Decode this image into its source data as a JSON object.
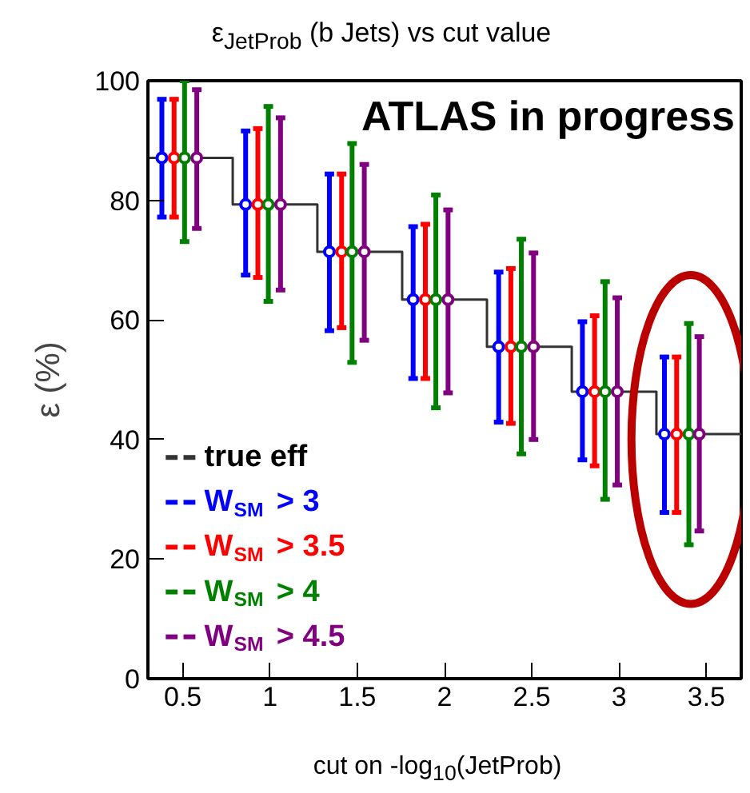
{
  "chart_data": {
    "type": "scatter",
    "title": "ε$_{JetProb}$ (b Jets) vs cut value",
    "xlabel": "cut on -log$_{10}$(JetProb)",
    "ylabel": "ε (%)",
    "xlim": [
      0.3,
      3.7
    ],
    "xticks": [
      0.5,
      1,
      1.5,
      2,
      2.5,
      3,
      3.5
    ],
    "ylim": [
      0,
      100
    ],
    "yticks": [
      0,
      20,
      40,
      60,
      80,
      100
    ],
    "grid": false,
    "legend": "left",
    "marker": "circle",
    "annotations": [
      "ATLAS in progress"
    ],
    "series": [
      {
        "name": "true eff",
        "type": "step",
        "marker": "none",
        "color": "#333333",
        "x": [
          0.3,
          0.786,
          1.271,
          1.757,
          2.243,
          2.729,
          3.214,
          3.7
        ],
        "values": [
          87.1,
          79.3,
          71.4,
          63.4,
          55.5,
          48,
          40.9,
          40.9
        ]
      },
      {
        "name": "W$_{SM}$ > 3",
        "color": "#0000ff",
        "x": [
          0.38,
          0.86,
          1.34,
          1.82,
          2.31,
          2.79,
          3.26
        ],
        "values": [
          87.1,
          79.3,
          71.4,
          63.4,
          55.5,
          48,
          40.9
        ],
        "errors": [
          [
            77.2,
            96.9
          ],
          [
            67.5,
            91.6
          ],
          [
            58.2,
            84.4
          ],
          [
            50.2,
            75.6
          ],
          [
            42.9,
            68
          ],
          [
            36.6,
            59.7
          ],
          [
            27.8,
            53.8
          ]
        ]
      },
      {
        "name": "W$_{SM}$ > 3.5",
        "color": "#ff0000",
        "x": [
          0.45,
          0.93,
          1.41,
          1.89,
          2.38,
          2.86,
          3.33
        ],
        "values": [
          87.1,
          79.3,
          71.4,
          63.4,
          55.5,
          48,
          40.9
        ],
        "errors": [
          [
            77.2,
            96.9
          ],
          [
            67.1,
            92
          ],
          [
            58.7,
            84.4
          ],
          [
            50.2,
            76
          ],
          [
            42.7,
            68.6
          ],
          [
            35.6,
            60.7
          ],
          [
            27.8,
            53.8
          ]
        ]
      },
      {
        "name": "W$_{SM}$ > 4",
        "color": "#008000",
        "x": [
          0.51,
          0.99,
          1.47,
          1.95,
          2.44,
          2.92,
          3.4
        ],
        "values": [
          87.1,
          79.3,
          71.4,
          63.4,
          55.5,
          48,
          40.9
        ],
        "errors": [
          [
            73.1,
            100
          ],
          [
            63.1,
            95.7
          ],
          [
            52.9,
            89.5
          ],
          [
            45.3,
            80.9
          ],
          [
            37.6,
            73.5
          ],
          [
            30,
            66.4
          ],
          [
            22.4,
            59.4
          ]
        ]
      },
      {
        "name": "W$_{SM}$ > 4.5",
        "color": "#800080",
        "x": [
          0.58,
          1.06,
          1.54,
          2.02,
          2.51,
          2.99,
          3.46
        ],
        "values": [
          87.1,
          79.3,
          71.4,
          63.4,
          55.5,
          48,
          40.9
        ],
        "errors": [
          [
            75.3,
            98.5
          ],
          [
            65,
            93.8
          ],
          [
            56.6,
            86
          ],
          [
            47.8,
            78.4
          ],
          [
            40,
            71.2
          ],
          [
            32.4,
            63.7
          ],
          [
            24.7,
            57.2
          ]
        ]
      }
    ]
  }
}
